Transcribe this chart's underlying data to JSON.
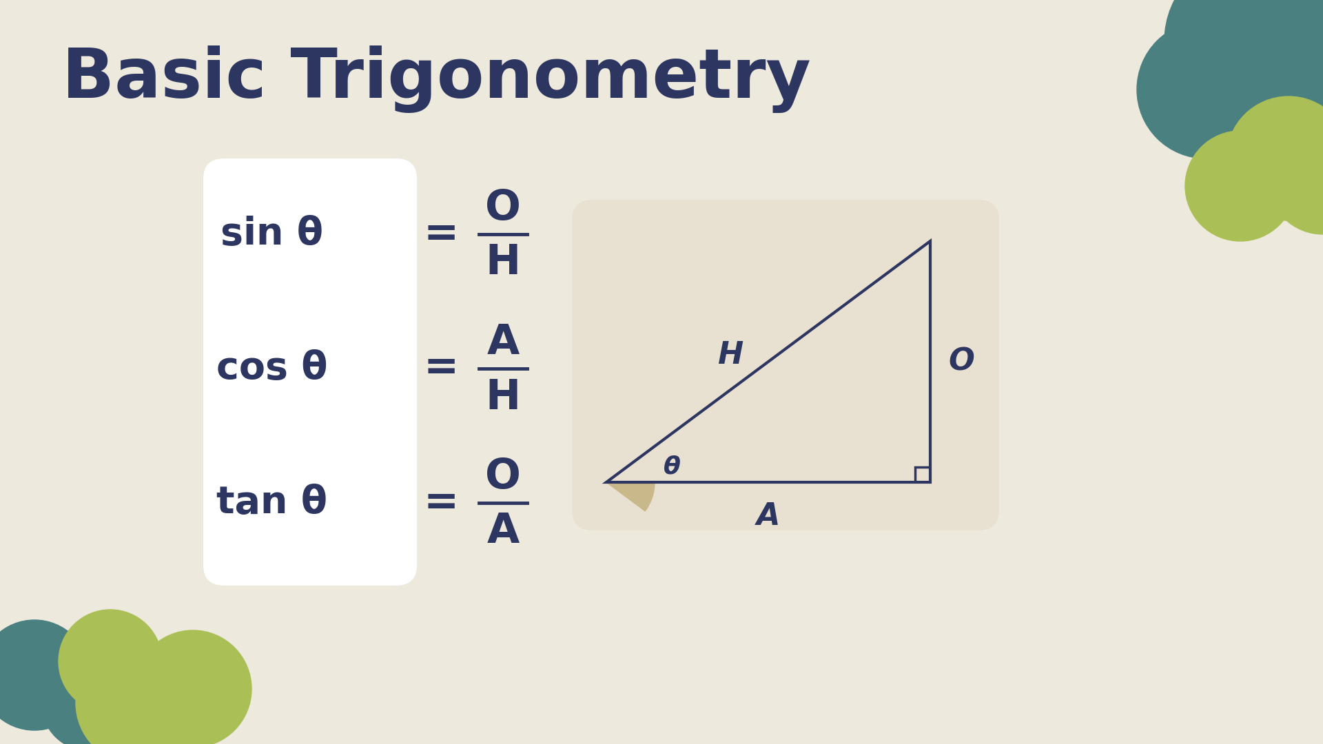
{
  "title": "Basic Trigonometry",
  "title_color": "#2d3561",
  "title_fontsize": 72,
  "bg_color": "#ede9dc",
  "formula_box_color": "#ffffff",
  "triangle_box_color": "#e8e0d0",
  "text_color": "#2d3561",
  "formulas": [
    {
      "label": "sin θ",
      "num": "O",
      "den": "H"
    },
    {
      "label": "cos θ",
      "num": "A",
      "den": "H"
    },
    {
      "label": "tan θ",
      "num": "O",
      "den": "A"
    }
  ],
  "teal_tree_color": "#4a8080",
  "green_tree_color": "#aabf55",
  "triangle_line_color": "#2d3561",
  "triangle_fill_color": "#c8b88a",
  "right_angle_color": "#2d3561"
}
